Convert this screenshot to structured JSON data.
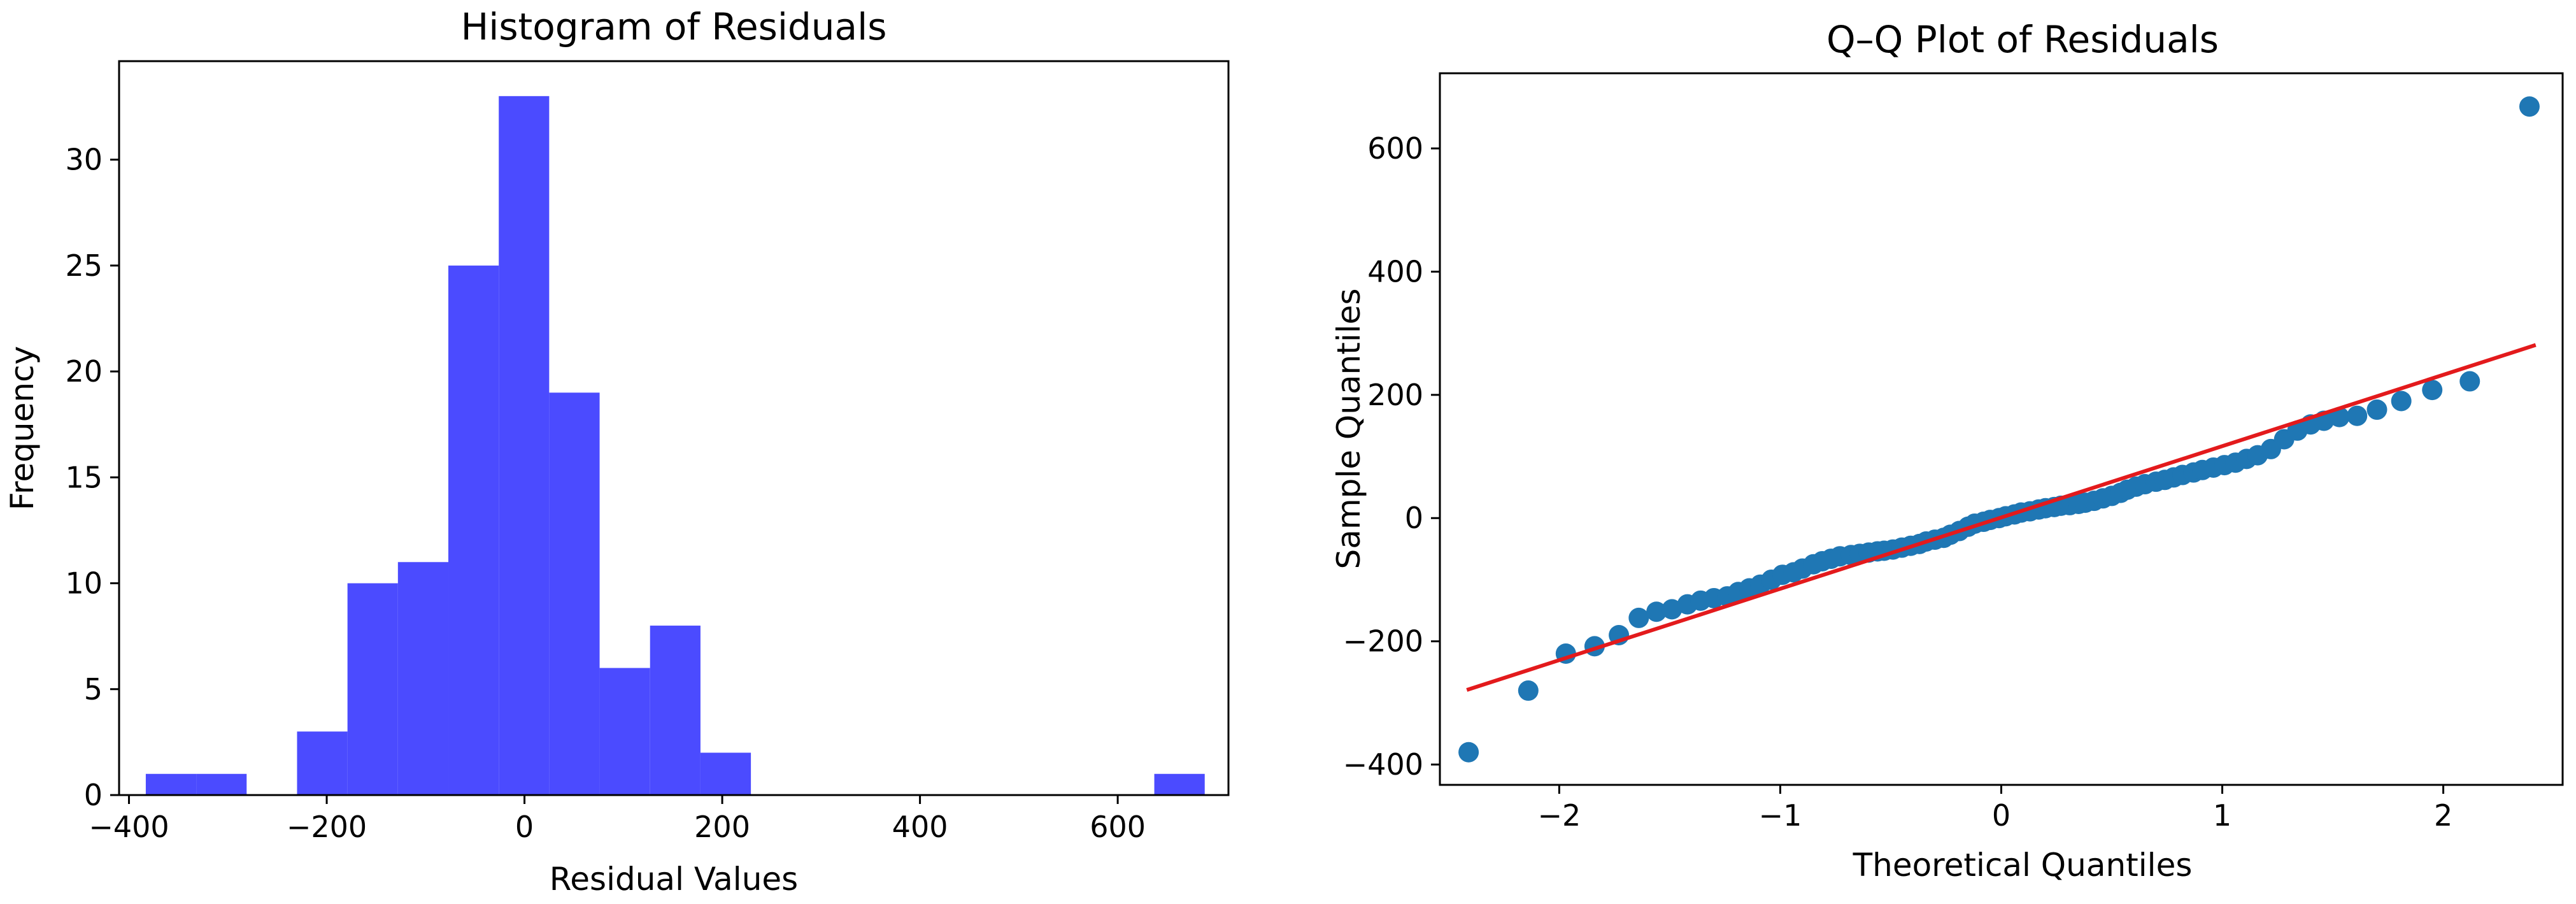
{
  "chart_data": [
    {
      "type": "bar",
      "title": "Histogram of Residuals",
      "xlabel": "Residual Values",
      "ylabel": "Frequency",
      "xlim": [
        -410,
        712
      ],
      "ylim": [
        0,
        34.65
      ],
      "xticks": [
        -400,
        -200,
        0,
        200,
        400,
        600
      ],
      "yticks": [
        0,
        5,
        10,
        15,
        20,
        25,
        30
      ],
      "bar_color": "#4b4bff",
      "bin_edges": [
        -383,
        -332,
        -281,
        -230,
        -179,
        -128,
        -77,
        -26,
        25,
        76,
        127,
        178,
        229,
        280,
        331,
        382,
        433,
        484,
        535,
        586,
        637,
        688
      ],
      "values": [
        1,
        1,
        0,
        3,
        10,
        11,
        25,
        33,
        19,
        6,
        8,
        2,
        0,
        0,
        0,
        0,
        0,
        0,
        0,
        0,
        1
      ]
    },
    {
      "type": "scatter",
      "title": "Q–Q Plot of Residuals",
      "xlabel": "Theoretical Quantiles",
      "ylabel": "Sample Quantiles",
      "xlim": [
        -2.54,
        2.54
      ],
      "ylim": [
        -433,
        722
      ],
      "xticks": [
        -2,
        -1,
        0,
        1,
        2
      ],
      "yticks": [
        -400,
        -200,
        0,
        200,
        400,
        600
      ],
      "point_color": "#1f77b4",
      "line_color": "#e31a1c",
      "fit_line": {
        "x": [
          -2.41,
          2.41
        ],
        "y": [
          -278,
          280
        ]
      },
      "points": [
        [
          -2.41,
          -380
        ],
        [
          -2.14,
          -280
        ],
        [
          -1.97,
          -220
        ],
        [
          -1.84,
          -208
        ],
        [
          -1.73,
          -190
        ],
        [
          -1.64,
          -162
        ],
        [
          -1.56,
          -152
        ],
        [
          -1.49,
          -148
        ],
        [
          -1.42,
          -140
        ],
        [
          -1.36,
          -134
        ],
        [
          -1.3,
          -130
        ],
        [
          -1.24,
          -127
        ],
        [
          -1.19,
          -120
        ],
        [
          -1.14,
          -114
        ],
        [
          -1.09,
          -108
        ],
        [
          -1.04,
          -100
        ],
        [
          -0.99,
          -92
        ],
        [
          -0.94,
          -88
        ],
        [
          -0.9,
          -82
        ],
        [
          -0.85,
          -75
        ],
        [
          -0.81,
          -70
        ],
        [
          -0.77,
          -66
        ],
        [
          -0.73,
          -62
        ],
        [
          -0.68,
          -60
        ],
        [
          -0.64,
          -58
        ],
        [
          -0.6,
          -56
        ],
        [
          -0.56,
          -54
        ],
        [
          -0.53,
          -53
        ],
        [
          -0.49,
          -51
        ],
        [
          -0.45,
          -48
        ],
        [
          -0.41,
          -45
        ],
        [
          -0.37,
          -42
        ],
        [
          -0.34,
          -38
        ],
        [
          -0.3,
          -35
        ],
        [
          -0.26,
          -32
        ],
        [
          -0.23,
          -27
        ],
        [
          -0.19,
          -21
        ],
        [
          -0.15,
          -14
        ],
        [
          -0.12,
          -9
        ],
        [
          -0.08,
          -6
        ],
        [
          -0.05,
          -3
        ],
        [
          -0.01,
          0
        ],
        [
          0.02,
          3
        ],
        [
          0.06,
          6
        ],
        [
          0.09,
          9
        ],
        [
          0.13,
          11
        ],
        [
          0.17,
          14
        ],
        [
          0.2,
          16
        ],
        [
          0.24,
          18
        ],
        [
          0.27,
          20
        ],
        [
          0.31,
          21
        ],
        [
          0.35,
          23
        ],
        [
          0.38,
          25
        ],
        [
          0.42,
          28
        ],
        [
          0.46,
          32
        ],
        [
          0.5,
          36
        ],
        [
          0.54,
          41
        ],
        [
          0.57,
          46
        ],
        [
          0.61,
          51
        ],
        [
          0.65,
          55
        ],
        [
          0.7,
          59
        ],
        [
          0.74,
          62
        ],
        [
          0.78,
          66
        ],
        [
          0.82,
          70
        ],
        [
          0.87,
          74
        ],
        [
          0.91,
          78
        ],
        [
          0.96,
          82
        ],
        [
          1.01,
          86
        ],
        [
          1.06,
          90
        ],
        [
          1.11,
          96
        ],
        [
          1.16,
          102
        ],
        [
          1.22,
          112
        ],
        [
          1.28,
          128
        ],
        [
          1.34,
          142
        ],
        [
          1.4,
          152
        ],
        [
          1.46,
          158
        ],
        [
          1.53,
          164
        ],
        [
          1.61,
          166
        ],
        [
          1.7,
          176
        ],
        [
          1.81,
          190
        ],
        [
          1.95,
          208
        ],
        [
          2.12,
          222
        ],
        [
          2.39,
          668
        ]
      ]
    }
  ]
}
